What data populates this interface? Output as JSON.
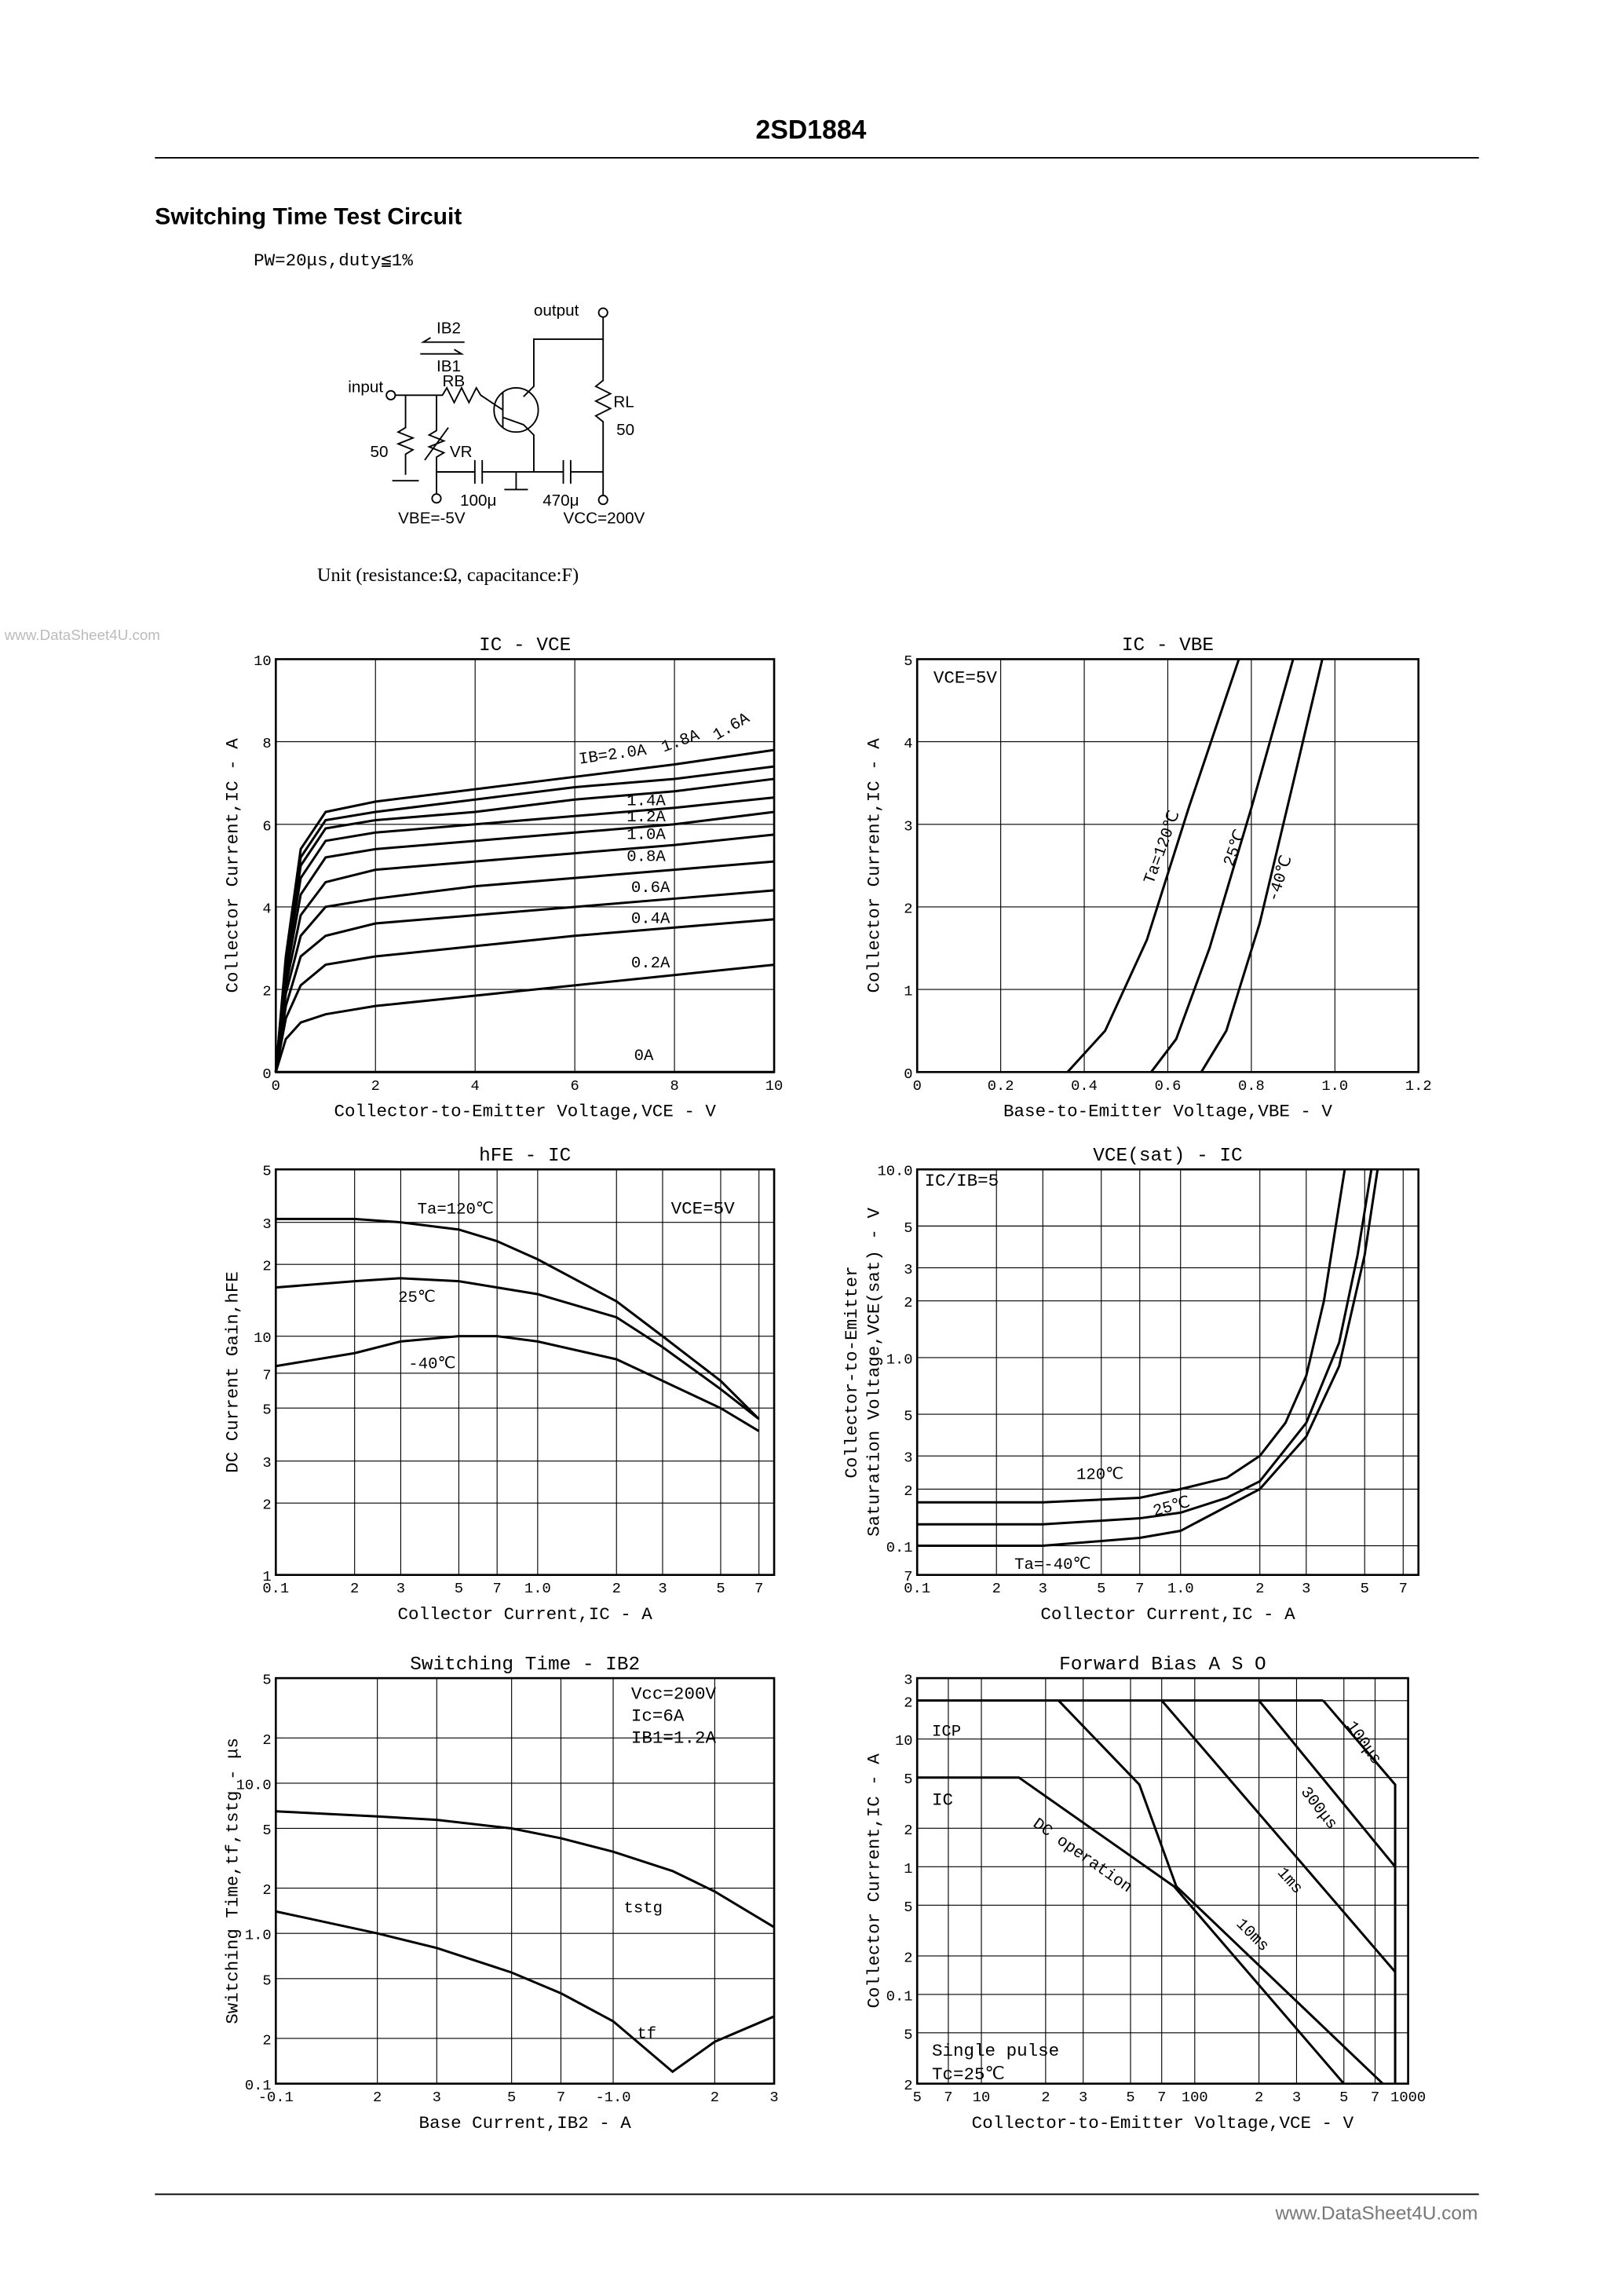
{
  "header": {
    "title": "2SD1884"
  },
  "watermarks": [
    "www.DataSheet4U.com",
    "www.DataSheet4U.com"
  ],
  "circuit": {
    "title": "Switching Time Test Circuit",
    "condition": "PW=20μs,duty≦1%",
    "labels": {
      "output": "output",
      "ib2": "IB2",
      "ib1": "IB1",
      "input": "input",
      "rb": "RB",
      "rl": "RL",
      "rl_value": "50",
      "r_in": "50",
      "vr": "VR",
      "c1": "100μ",
      "c2": "470μ",
      "vbe": "VBE=-5V",
      "vcc": "VCC=200V"
    },
    "unit": "Unit (resistance:Ω, capacitance:F)"
  },
  "chart_data": [
    {
      "type": "line",
      "title": "IC - VCE",
      "xlabel": "Collector-to-Emitter Voltage,VCE - V",
      "ylabel": "Collector Current,IC - A",
      "xlim": [
        0,
        10
      ],
      "ylim": [
        0,
        10
      ],
      "xticks": [
        0,
        2,
        4,
        6,
        8,
        10
      ],
      "yticks": [
        0,
        2,
        4,
        6,
        8,
        10
      ],
      "grid": true,
      "color": "#000000",
      "x": [
        0,
        0.2,
        0.5,
        1,
        2,
        4,
        6,
        8,
        10
      ],
      "series": [
        {
          "name": "0A",
          "values": [
            0,
            0,
            0,
            0,
            0,
            0,
            0,
            0,
            0
          ]
        },
        {
          "name": "0.2A",
          "values": [
            0,
            0.8,
            1.2,
            1.4,
            1.6,
            1.85,
            2.1,
            2.35,
            2.6
          ]
        },
        {
          "name": "0.4A",
          "values": [
            0,
            1.3,
            2.1,
            2.6,
            2.8,
            3.05,
            3.3,
            3.5,
            3.7
          ]
        },
        {
          "name": "0.6A",
          "values": [
            0,
            1.6,
            2.8,
            3.3,
            3.6,
            3.8,
            4.0,
            4.2,
            4.4
          ]
        },
        {
          "name": "0.8A",
          "values": [
            0,
            1.9,
            3.3,
            4.0,
            4.2,
            4.5,
            4.7,
            4.9,
            5.1
          ]
        },
        {
          "name": "1.0A",
          "values": [
            0,
            2.1,
            3.8,
            4.6,
            4.9,
            5.1,
            5.3,
            5.5,
            5.75
          ]
        },
        {
          "name": "1.2A",
          "values": [
            0,
            2.3,
            4.3,
            5.2,
            5.4,
            5.6,
            5.8,
            6.0,
            6.3
          ]
        },
        {
          "name": "1.4A",
          "values": [
            0,
            2.5,
            4.7,
            5.6,
            5.8,
            6.0,
            6.2,
            6.4,
            6.65
          ]
        },
        {
          "name": "1.6A",
          "values": [
            0,
            2.6,
            5.0,
            5.9,
            6.1,
            6.3,
            6.6,
            6.8,
            7.1
          ]
        },
        {
          "name": "1.8A",
          "values": [
            0,
            2.7,
            5.2,
            6.1,
            6.3,
            6.6,
            6.9,
            7.1,
            7.4
          ]
        },
        {
          "name": "IB=2.0A",
          "values": [
            0,
            2.8,
            5.4,
            6.3,
            6.55,
            6.85,
            7.15,
            7.45,
            7.8
          ]
        }
      ]
    },
    {
      "type": "line",
      "title": "IC - VBE",
      "xlabel": "Base-to-Emitter Voltage,VBE - V",
      "ylabel": "Collector Current,IC - A",
      "xlim": [
        0,
        1.2
      ],
      "ylim": [
        0,
        5
      ],
      "xticks": [
        0,
        0.2,
        0.4,
        0.6,
        0.8,
        {
          "value": 1,
          "label": "1.0"
        },
        1.2
      ],
      "yticks": [
        0,
        1,
        2,
        3,
        4,
        5
      ],
      "grid": true,
      "color": "#000000",
      "annotations": [
        "VCE=5V"
      ],
      "series": [
        {
          "name": "Ta=120℃",
          "x": [
            0.36,
            0.45,
            0.55,
            0.65,
            0.77
          ],
          "values": [
            0,
            0.5,
            1.6,
            3.2,
            5
          ]
        },
        {
          "name": "25℃",
          "x": [
            0.56,
            0.62,
            0.7,
            0.8,
            0.9
          ],
          "values": [
            0,
            0.4,
            1.5,
            3.2,
            5
          ]
        },
        {
          "name": "-40℃",
          "x": [
            0.68,
            0.74,
            0.82,
            0.9,
            0.97
          ],
          "values": [
            0,
            0.5,
            1.8,
            3.5,
            5
          ]
        }
      ]
    },
    {
      "type": "line",
      "title": "hFE - IC",
      "xlabel": "Collector Current,IC - A",
      "ylabel": "DC Current Gain,hFE",
      "xlog": true,
      "ylog": true,
      "xlim": [
        0.1,
        8
      ],
      "ylim": [
        1,
        50
      ],
      "xticks": [
        0.1,
        {
          "value": 0.2,
          "label": "2"
        },
        {
          "value": 0.3,
          "label": "3"
        },
        {
          "value": 0.5,
          "label": "5"
        },
        {
          "value": 0.7,
          "label": "7"
        },
        {
          "value": 1,
          "label": "1.0"
        },
        2,
        3,
        5,
        7
      ],
      "yticks": [
        1,
        2,
        3,
        5,
        7,
        10,
        {
          "value": 20,
          "label": "2"
        },
        {
          "value": 30,
          "label": "3"
        },
        {
          "value": 50,
          "label": "5"
        }
      ],
      "grid": true,
      "color": "#000000",
      "annotations": [
        "VCE=5V"
      ],
      "x": [
        0.1,
        0.2,
        0.3,
        0.5,
        0.7,
        1,
        2,
        3,
        5,
        7
      ],
      "series": [
        {
          "name": "Ta=120℃",
          "values": [
            31,
            31,
            30,
            28,
            25,
            21,
            14,
            10,
            6.5,
            4.5
          ]
        },
        {
          "name": "25℃",
          "values": [
            16,
            17,
            17.5,
            17,
            16,
            15,
            12,
            9,
            6,
            4.5
          ]
        },
        {
          "name": "-40℃",
          "values": [
            7.5,
            8.5,
            9.5,
            10,
            10,
            9.5,
            8,
            6.5,
            5,
            4
          ]
        }
      ]
    },
    {
      "type": "line",
      "title": "VCE(sat) - IC",
      "xlabel": "Collector Current,IC - A",
      "ylabel": [
        "Collector-to-Emitter",
        "Saturation Voltage,VCE(sat) - V"
      ],
      "xlog": true,
      "ylog": true,
      "xlim": [
        0.1,
        8
      ],
      "ylim": [
        0.07,
        10
      ],
      "xticks": [
        0.1,
        {
          "value": 0.2,
          "label": "2"
        },
        {
          "value": 0.3,
          "label": "3"
        },
        {
          "value": 0.5,
          "label": "5"
        },
        {
          "value": 0.7,
          "label": "7"
        },
        {
          "value": 1,
          "label": "1.0"
        },
        2,
        3,
        5,
        7
      ],
      "yticks": [
        {
          "value": 0.07,
          "label": "7"
        },
        0.1,
        {
          "value": 0.2,
          "label": "2"
        },
        {
          "value": 0.3,
          "label": "3"
        },
        {
          "value": 0.5,
          "label": "5"
        },
        {
          "value": 1,
          "label": "1.0"
        },
        2,
        3,
        5,
        {
          "value": 10,
          "label": "10.0"
        }
      ],
      "grid": true,
      "color": "#000000",
      "annotations": [
        "IC/IB=5"
      ],
      "series": [
        {
          "name": "120℃",
          "x": [
            0.1,
            0.3,
            0.7,
            1,
            1.5,
            2,
            2.5,
            3,
            3.5,
            4.2
          ],
          "values": [
            0.17,
            0.17,
            0.18,
            0.2,
            0.23,
            0.3,
            0.45,
            0.8,
            2,
            10
          ]
        },
        {
          "name": "25℃",
          "x": [
            0.1,
            0.3,
            0.7,
            1,
            1.5,
            2,
            3,
            4,
            4.7,
            5.3
          ],
          "values": [
            0.13,
            0.13,
            0.14,
            0.15,
            0.18,
            0.22,
            0.45,
            1.2,
            3.5,
            10
          ]
        },
        {
          "name": "Ta=-40℃",
          "x": [
            0.1,
            0.3,
            0.7,
            1,
            2,
            3,
            4,
            5,
            5.6
          ],
          "values": [
            0.1,
            0.1,
            0.11,
            0.12,
            0.2,
            0.38,
            0.9,
            3.5,
            10
          ]
        }
      ]
    },
    {
      "type": "line",
      "title": "Switching Time - IB2",
      "xlabel": "Base Current,IB2 - A",
      "ylabel": "Switching Time,tf,tstg - μs",
      "xlog": true,
      "ylog": true,
      "xlim": [
        -0.1,
        -3
      ],
      "ylim": [
        0.1,
        50
      ],
      "xticks": [
        -0.1,
        {
          "value": -0.2,
          "label": "2"
        },
        {
          "value": -0.3,
          "label": "3"
        },
        {
          "value": -0.5,
          "label": "5"
        },
        {
          "value": -0.7,
          "label": "7"
        },
        {
          "value": -1,
          "label": "-1.0"
        },
        {
          "value": -2,
          "label": "2"
        },
        {
          "value": -3,
          "label": "3"
        }
      ],
      "yticks": [
        0.1,
        {
          "value": 0.2,
          "label": "2"
        },
        {
          "value": 0.5,
          "label": "5"
        },
        {
          "value": 1,
          "label": "1.0"
        },
        2,
        5,
        {
          "value": 10,
          "label": "10.0"
        },
        {
          "value": 20,
          "label": "2"
        },
        {
          "value": 50,
          "label": "5"
        }
      ],
      "grid": true,
      "color": "#000000",
      "annotations": [
        "Vcc=200V",
        "Ic=6A",
        "IB1=1.2A"
      ],
      "x": [
        -0.1,
        -0.2,
        -0.3,
        -0.5,
        -0.7,
        -1,
        -1.5,
        -2,
        -3
      ],
      "series": [
        {
          "name": "tstg",
          "values": [
            6.5,
            6,
            5.7,
            5,
            4.3,
            3.5,
            2.6,
            1.9,
            1.1
          ]
        },
        {
          "name": "tf",
          "values": [
            1.4,
            1.0,
            0.8,
            0.55,
            0.4,
            0.26,
            0.12,
            0.19,
            0.28
          ]
        }
      ]
    },
    {
      "type": "line",
      "title": "Forward Bias A S O",
      "xlabel": "Collector-to-Emitter Voltage,VCE - V",
      "ylabel": "Collector Current,IC - A",
      "xlog": true,
      "ylog": true,
      "xlim": [
        5,
        1000
      ],
      "ylim": [
        0.02,
        30
      ],
      "xticks": [
        5,
        7,
        10,
        {
          "value": 20,
          "label": "2"
        },
        {
          "value": 30,
          "label": "3"
        },
        {
          "value": 50,
          "label": "5"
        },
        {
          "value": 70,
          "label": "7"
        },
        100,
        {
          "value": 200,
          "label": "2"
        },
        {
          "value": 300,
          "label": "3"
        },
        {
          "value": 500,
          "label": "5"
        },
        {
          "value": 700,
          "label": "7"
        },
        1000
      ],
      "yticks": [
        {
          "value": 0.02,
          "label": "2"
        },
        {
          "value": 0.05,
          "label": "5"
        },
        0.1,
        {
          "value": 0.2,
          "label": "2"
        },
        {
          "value": 0.5,
          "label": "5"
        },
        1,
        2,
        5,
        10,
        {
          "value": 20,
          "label": "2"
        },
        {
          "value": 30,
          "label": "3"
        }
      ],
      "grid": true,
      "color": "#000000",
      "annotations": [
        "IC",
        "Single pulse",
        "Tc=25℃"
      ],
      "series": [
        {
          "name": "ICP",
          "x": [
            5,
            400
          ],
          "values": [
            20,
            20
          ]
        },
        {
          "name": "DC operation",
          "x": [
            5,
            15,
            80,
            500
          ],
          "values": [
            5,
            5,
            0.7,
            0.02
          ]
        },
        {
          "name": "10ms",
          "x": [
            23,
            55,
            82,
            760
          ],
          "values": [
            20,
            4.4,
            0.7,
            0.02
          ]
        },
        {
          "name": "1ms",
          "x": [
            70,
            870
          ],
          "values": [
            20,
            0.15
          ]
        },
        {
          "name": "300μs",
          "x": [
            200,
            870
          ],
          "values": [
            20,
            1
          ]
        },
        {
          "name": "100μs",
          "x": [
            400,
            870,
            870
          ],
          "values": [
            20,
            4.4,
            0.02
          ]
        }
      ]
    }
  ]
}
